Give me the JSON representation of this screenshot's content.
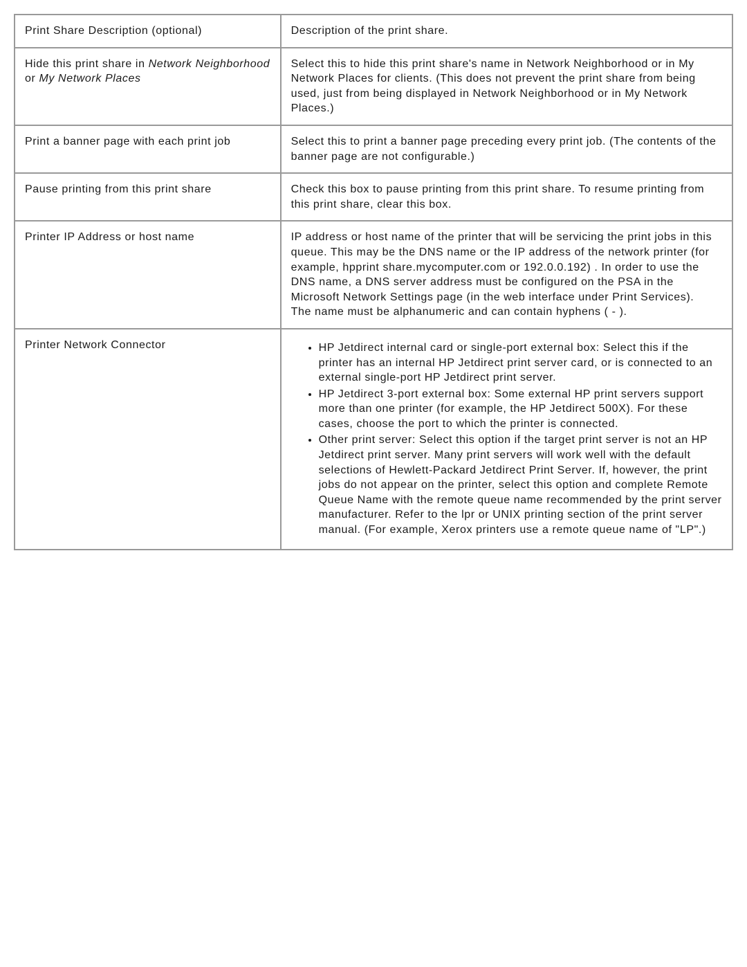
{
  "table": {
    "border_color": "#999999",
    "background_color": "#ffffff",
    "cell_padding": "12px 14px",
    "font_size": 16,
    "font_color": "#1a1a1a",
    "letter_spacing": "0.6px",
    "label_col_width": "37%",
    "desc_col_width": "63%"
  },
  "rows": [
    {
      "label": "Print Share Description (optional)",
      "description": "Description of the print share."
    },
    {
      "label_parts": {
        "prefix": "Hide this print share in ",
        "italic1": "Network Neighborhood",
        "middle": " or ",
        "italic2": "My Network Places"
      },
      "description": "Select this to hide this print share's name in Network Neighborhood or in My Network Places for clients. (This does not prevent the print share from being used, just from being displayed in Network Neighborhood or in My Network Places.)"
    },
    {
      "label": "Print a banner page with each print job",
      "description": "Select this to print a banner page preceding every print job. (The contents of the banner page are not configurable.)"
    },
    {
      "label": "Pause printing from this print share",
      "description": "Check this box to pause printing from this print share. To resume printing from this print share, clear this box."
    },
    {
      "label": "Printer IP Address or host name",
      "description_parts": {
        "p1": "IP address or host name of the printer that will be servicing the print jobs in this queue. This may be the DNS name or the IP address of the network printer (for example, hpprint share.mycomputer.com or 192.0.0.192) . In order to use the DNS name, a DNS server address must be configured on the PSA in the Microsoft Network Settings page (in the web interface under Print Services).",
        "p2": "The name must be alphanumeric and can contain hyphens ( - )."
      }
    },
    {
      "label": "Printer Network Connector",
      "bullets": [
        "HP Jetdirect internal card or single-port external box: Select this if the printer has an internal HP Jetdirect print server card, or is connected to an external single-port HP Jetdirect print server.",
        "HP Jetdirect 3-port external box: Some external HP print servers support more than one printer (for example, the HP Jetdirect 500X). For these cases, choose the port to which the printer is connected.",
        "Other print server: Select this option if the target print server is not an HP Jetdirect print server. Many print servers will work well with the default selections of Hewlett-Packard Jetdirect Print Server. If, however, the print jobs do not appear on the printer, select this option and complete Remote Queue Name with the remote queue name recommended by the print server manufacturer. Refer to the lpr or UNIX printing section of the print server manual. (For example, Xerox printers use a remote queue name of \"LP\".)"
      ]
    }
  ]
}
